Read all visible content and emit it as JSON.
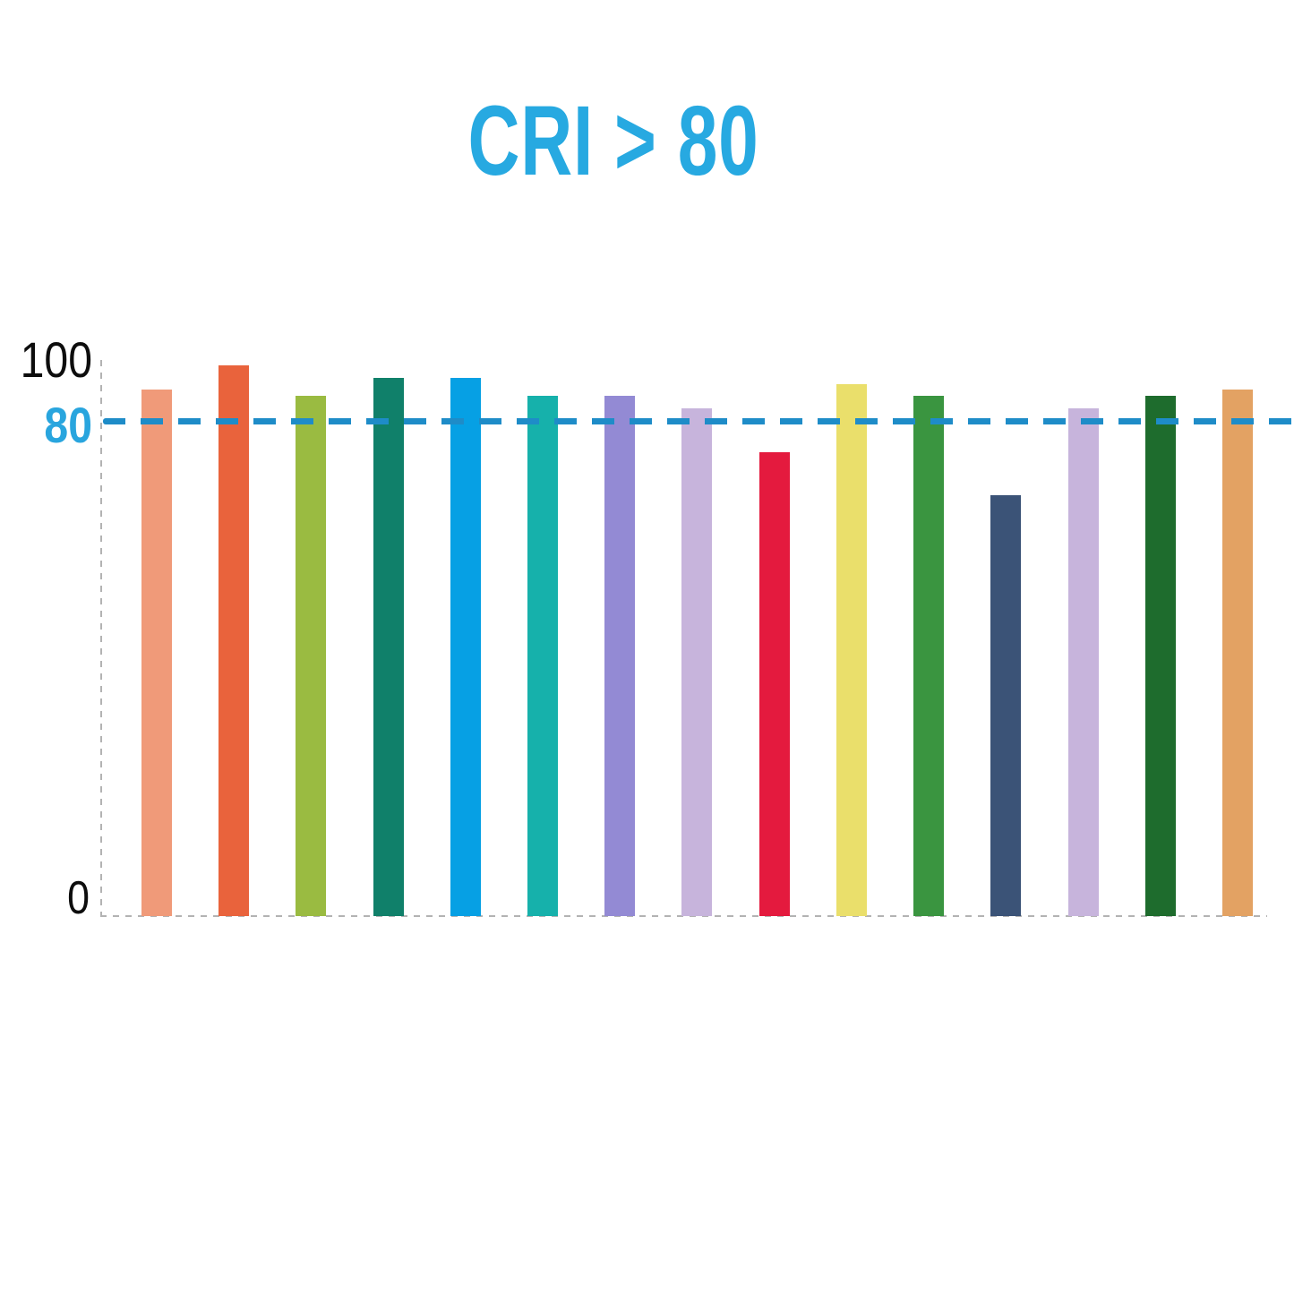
{
  "title": {
    "text": "CRI > 80",
    "color": "#27a9e1"
  },
  "y_axis": {
    "label_100": "100",
    "label_80": "80",
    "label_0": "0",
    "label_80_color": "#29a5de"
  },
  "chart_data": {
    "type": "bar",
    "title": "CRI > 80",
    "values": [
      85,
      89,
      84,
      87,
      87,
      84,
      84,
      82,
      75,
      86,
      84,
      68,
      82,
      84,
      85
    ],
    "bar_colors": [
      "#f09a79",
      "#e9633c",
      "#9abb41",
      "#10806a",
      "#06a0e4",
      "#16b1ab",
      "#938ad4",
      "#c7b4dc",
      "#e41a3e",
      "#eadf6b",
      "#3a9540",
      "#3b5377",
      "#c7b4dc",
      "#1e6c2d",
      "#e3a263"
    ],
    "ylim": [
      0,
      100
    ],
    "ytick_labels": [
      "100",
      "80",
      "0"
    ],
    "reference_line": {
      "value": 80,
      "label": "80",
      "style": "dashed",
      "color": "#1e8cc8"
    },
    "axis_style": "dashed-gray",
    "grid": false,
    "legend": false,
    "xlabel": "",
    "ylabel": ""
  }
}
